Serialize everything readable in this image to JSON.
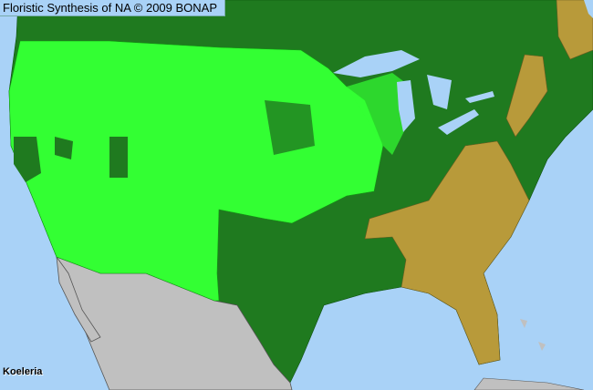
{
  "header": {
    "title": "Floristic Synthesis of NA © 2009 BONAP"
  },
  "map": {
    "taxon": "Koeleria",
    "colors": {
      "water": "#a9d2f7",
      "species_present_native": "#22a022",
      "present_in_state": "#1f7a1f",
      "county_present": "#33ff33",
      "absent_state": "#b89a3a",
      "outside_range": "#c0c0c0"
    }
  }
}
